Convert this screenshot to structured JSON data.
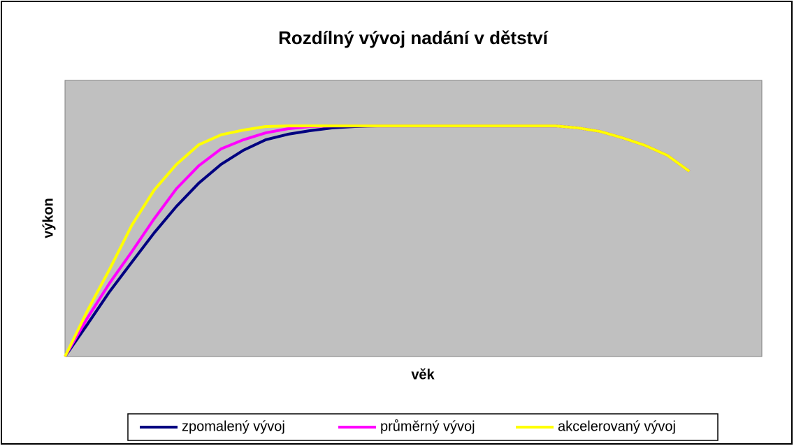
{
  "chart_data": {
    "type": "line",
    "title": "Rozdílný vývoj nadání v dětství",
    "x_label": "věk",
    "y_label": "výkon",
    "x": [
      0,
      1,
      2,
      3,
      4,
      5,
      6,
      7,
      8,
      9,
      10,
      11,
      12,
      13,
      14,
      15,
      16,
      17,
      18,
      19,
      20,
      21,
      22,
      23,
      24,
      25,
      26,
      27,
      28
    ],
    "xlim": [
      0,
      31.25
    ],
    "ylim": [
      0,
      100
    ],
    "yticks": [],
    "legend": "bottom",
    "series": [
      {
        "name": "zpomalený vývoj",
        "color": "#000080",
        "values": [
          0,
          11.6,
          23.5,
          34.2,
          44.8,
          54.4,
          62.8,
          69.6,
          74.7,
          78.5,
          80.5,
          81.8,
          82.8,
          83.3,
          83.5,
          83.5,
          83.5,
          83.5,
          83.5,
          83.5,
          83.5,
          83.5,
          83.5,
          82.8,
          81.5,
          79.2,
          76.5,
          72.9,
          67.1
        ]
      },
      {
        "name": "průměrný vývoj",
        "color": "#ff00ff",
        "values": [
          0,
          13.9,
          26.6,
          38,
          49.9,
          60.8,
          69.1,
          75.2,
          78.5,
          81,
          82.5,
          83.3,
          83.5,
          83.5,
          83.5,
          83.5,
          83.5,
          83.5,
          83.5,
          83.5,
          83.5,
          83.5,
          83.5,
          82.8,
          81.5,
          79.2,
          76.5,
          72.9,
          67.1
        ]
      },
      {
        "name": "akcelerovaný vývoj",
        "color": "#ffff00",
        "values": [
          0,
          16.5,
          31.6,
          47.6,
          60.3,
          69.6,
          76.7,
          80.3,
          82,
          83.3,
          83.5,
          83.5,
          83.5,
          83.5,
          83.5,
          83.5,
          83.5,
          83.5,
          83.5,
          83.5,
          83.5,
          83.5,
          83.5,
          82.8,
          81.5,
          79.2,
          76.5,
          72.9,
          67.1
        ]
      }
    ]
  }
}
